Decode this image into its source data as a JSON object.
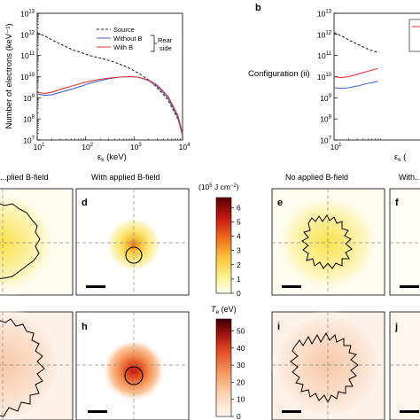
{
  "chart_data": [
    {
      "type": "line",
      "ylabel": "Number of electrons (keV⁻¹)",
      "xlabel": "εk (keV)",
      "xscale": "log",
      "yscale": "log",
      "xlim": [
        10,
        10000
      ],
      "ylim": [
        10000000.0,
        10000000000000.0
      ],
      "x_tick_labels": [
        "10",
        "10",
        "10",
        "10"
      ],
      "x_tick_exponents": [
        "1",
        "2",
        "3",
        "4"
      ],
      "y_tick_labels": [
        "10",
        "10",
        "10",
        "10",
        "10",
        "10",
        "10"
      ],
      "y_tick_exponents": [
        "7",
        "8",
        "9",
        "10",
        "11",
        "12",
        "13"
      ],
      "legend": {
        "placement": "top-right",
        "source_label": "Source",
        "without_label": "Without B",
        "with_label": "With B",
        "group_label_1": "Rear",
        "group_label_2": "side"
      },
      "series": [
        {
          "name": "Source",
          "color": "#222222",
          "dash": true,
          "x": [
            10,
            15,
            20,
            30,
            50,
            80,
            120,
            200,
            300,
            500,
            800,
            1200,
            2000,
            3000,
            5000,
            8000,
            10000
          ],
          "y": [
            1200000000000.0,
            800000000000.0,
            550000000000.0,
            350000000000.0,
            200000000000.0,
            140000000000.0,
            100000000000.0,
            75000000000.0,
            60000000000.0,
            40000000000.0,
            25000000000.0,
            15000000000.0,
            7000000000.0,
            3000000000.0,
            800000000.0,
            100000000.0,
            20000000.0
          ]
        },
        {
          "name": "Without B",
          "color": "#4466cc",
          "x": [
            10,
            14,
            20,
            30,
            50,
            80,
            120,
            200,
            300,
            500,
            800,
            1200,
            2000,
            3000,
            5000,
            8000,
            10000
          ],
          "y": [
            1500000000.0,
            1300000000.0,
            1400000000.0,
            1800000000.0,
            2500000000.0,
            3500000000.0,
            4800000000.0,
            6500000000.0,
            8000000000.0,
            9500000000.0,
            10000000000.0,
            9500000000.0,
            6500000000.0,
            3500000000.0,
            1000000000.0,
            120000000.0,
            15000000.0
          ]
        },
        {
          "name": "With B",
          "color": "#e03030",
          "x": [
            10,
            14,
            20,
            30,
            50,
            80,
            120,
            200,
            300,
            500,
            800,
            1200,
            2000,
            3000,
            5000,
            8000,
            10000
          ],
          "y": [
            1800000000.0,
            1600000000.0,
            1800000000.0,
            2500000000.0,
            3500000000.0,
            4800000000.0,
            6000000000.0,
            7500000000.0,
            8500000000.0,
            9500000000.0,
            10000000000.0,
            9500000000.0,
            7000000000.0,
            4000000000.0,
            1200000000.0,
            150000000.0,
            20000000.0
          ]
        }
      ]
    },
    {
      "type": "line",
      "panel_letter": "b",
      "annotation": "Configuration (ii)",
      "xscale": "log",
      "yscale": "log",
      "x_tick_labels": [
        "10"
      ],
      "x_tick_exponents": [
        "1"
      ],
      "y_tick_labels": [
        "10",
        "10",
        "10",
        "10",
        "10",
        "10",
        "10"
      ],
      "y_tick_exponents": [
        "7",
        "8",
        "9",
        "10",
        "11",
        "12",
        "13"
      ],
      "xlabel_visible": "εk (",
      "series": [
        {
          "color": "#222222",
          "dash": true
        },
        {
          "color": "#4466cc"
        },
        {
          "color": "#e03030"
        }
      ]
    }
  ],
  "panels": {
    "row1_titles": {
      "c": "...plied B-field",
      "d": "With applied B-field",
      "e": "No applied B-field",
      "f": "With..."
    },
    "letters": [
      "d",
      "e",
      "f",
      "h",
      "i",
      "j"
    ],
    "letter_d": "d",
    "letter_e": "e",
    "letter_f": "f",
    "letter_h": "h",
    "letter_i": "i",
    "letter_j": "j"
  },
  "colorbar_top": {
    "unit_prefix": "(10",
    "unit_exp": "5",
    "unit_suffix": " J cm",
    "unit_exp2": "−2",
    "unit_close": ")",
    "ticks": [
      "6",
      "5",
      "4",
      "3",
      "2",
      "1",
      "0"
    ],
    "range": [
      0,
      6.7
    ]
  },
  "colorbar_bottom": {
    "symbol": "T",
    "symbol_sub": "e",
    "unit": " (eV)",
    "ticks": [
      "50",
      "40",
      "30",
      "20",
      "10",
      "0"
    ],
    "range": [
      0,
      57
    ]
  },
  "colors": {
    "source": "#222222",
    "without_b": "#4466cc",
    "with_b": "#e03030",
    "map_low_top": "#fffbe0",
    "map_high_top": "#5a0000",
    "map_low_bottom": "#fff4ec",
    "map_high_bottom": "#3a0000"
  }
}
